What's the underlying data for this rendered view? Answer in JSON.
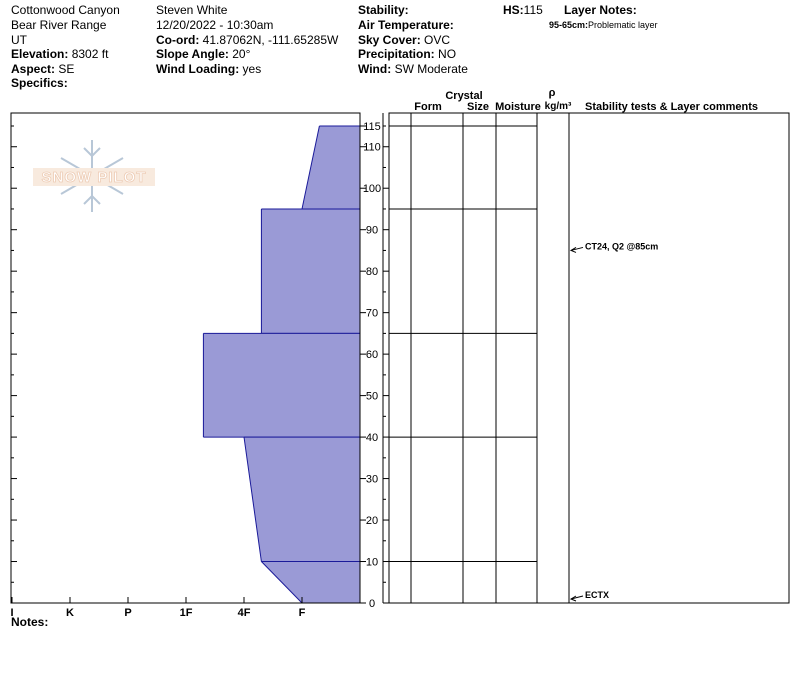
{
  "site": {
    "location": "Cottonwood Canyon",
    "range": "Bear River Range",
    "state": "UT",
    "elevation_label": "Elevation:",
    "elevation": "8302 ft",
    "aspect_label": "Aspect:",
    "aspect": "SE",
    "specifics_label": "Specifics:"
  },
  "observer": {
    "name": "Steven White",
    "datetime": "12/20/2022 - 10:30am",
    "coord_label": "Co-ord:",
    "coord": "41.87062N, -111.65285W",
    "slope_label": "Slope Angle:",
    "slope": "20°",
    "wind_loading_label": "Wind Loading:",
    "wind_loading": "yes"
  },
  "conditions": {
    "stability_label": "Stability:",
    "air_temp_label": "Air Temperature:",
    "sky_label": "Sky Cover:",
    "sky": "OVC",
    "precip_label": "Precipitation:",
    "precip": "NO",
    "wind_label": "Wind:",
    "wind": "SW Moderate"
  },
  "hs": {
    "label": "HS:",
    "value": "115"
  },
  "layer_notes": {
    "title": "Layer Notes:",
    "range": "95-65cm:",
    "text": "Problematic layer"
  },
  "logo": {
    "text": "SNOW PILOT"
  },
  "notes_label": "Notes:",
  "table_headers": {
    "crystal": "Crystal",
    "form": "Form",
    "size": "Size",
    "moisture": "Moisture",
    "rho": "ρ",
    "density_unit": "kg/m³",
    "stability": "Stability tests & Layer comments"
  },
  "colors": {
    "fill": "#9a9ad6",
    "edge": "#1a1a99"
  },
  "chart_data": {
    "type": "area",
    "xlabel": "",
    "ylabel": "",
    "hardness_categories": [
      "I",
      "K",
      "P",
      "1F",
      "4F",
      "F"
    ],
    "height_ticks": [
      0,
      10,
      20,
      30,
      40,
      50,
      60,
      70,
      80,
      90,
      100,
      110,
      115
    ],
    "ylim": [
      0,
      115
    ],
    "layers": [
      {
        "top": 115,
        "bottom": 95,
        "hardness_top": 0.7,
        "hardness_bottom": 1.0
      },
      {
        "top": 95,
        "bottom": 65,
        "hardness_top": 1.7,
        "hardness_bottom": 1.7
      },
      {
        "top": 65,
        "bottom": 40,
        "hardness_top": 2.7,
        "hardness_bottom": 2.7
      },
      {
        "top": 40,
        "bottom": 10,
        "hardness_top": 2.0,
        "hardness_bottom": 1.7
      },
      {
        "top": 10,
        "bottom": 0,
        "hardness_top": 1.7,
        "hardness_bottom": 1.0
      }
    ],
    "stability_tests": [
      {
        "height": 85,
        "label": "CT24, Q2 @85cm"
      },
      {
        "height": 0,
        "label": "ECTX"
      }
    ]
  }
}
